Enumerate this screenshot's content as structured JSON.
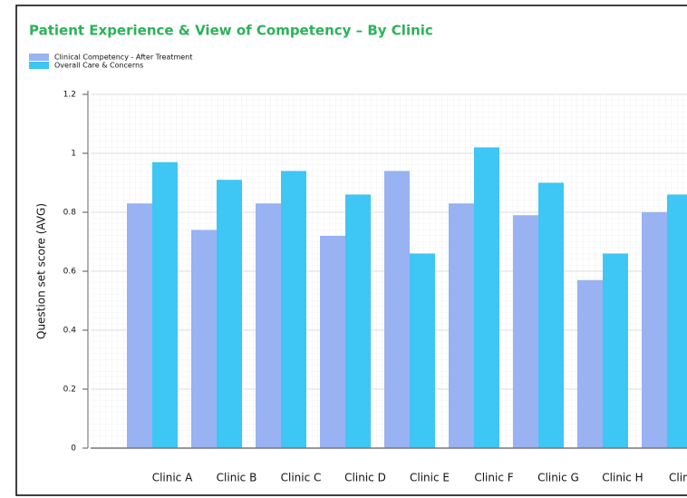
{
  "chart_data": {
    "type": "bar",
    "title": "Patient Experience & View of Competency – By Clinic",
    "y_label": "Question set score (AVG)",
    "categories": [
      "Clinic A",
      "Clinic B",
      "Clinic C",
      "Clinic D",
      "Clinic E",
      "Clinic F",
      "Clinic G",
      "Clinic H",
      "Clinic I"
    ],
    "series": [
      {
        "name": "Clinical Competency - After Treatment",
        "color": "#98b2f2",
        "values": [
          0.83,
          0.74,
          0.83,
          0.72,
          0.94,
          0.83,
          0.79,
          0.57,
          0.8
        ]
      },
      {
        "name": "Overall Care & Concerns",
        "color": "#3ec6f4",
        "values": [
          0.97,
          0.91,
          0.94,
          0.86,
          0.66,
          1.02,
          0.9,
          0.66,
          0.86
        ]
      }
    ],
    "ylim": [
      0,
      1.2
    ],
    "yticks": [
      0,
      0.2,
      0.4,
      0.6,
      0.8,
      1,
      1.2
    ],
    "grid": true
  }
}
